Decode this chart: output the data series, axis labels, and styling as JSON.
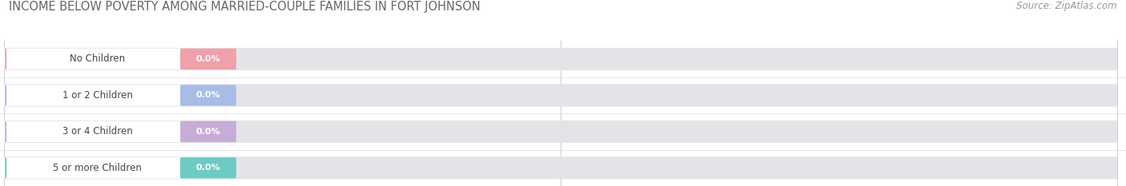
{
  "title": "INCOME BELOW POVERTY AMONG MARRIED-COUPLE FAMILIES IN FORT JOHNSON",
  "source": "Source: ZipAtlas.com",
  "categories": [
    "No Children",
    "1 or 2 Children",
    "3 or 4 Children",
    "5 or more Children"
  ],
  "values": [
    0.0,
    0.0,
    0.0,
    0.0
  ],
  "bar_colors": [
    "#f0a0a8",
    "#a8bce8",
    "#c8acd8",
    "#6cccc4"
  ],
  "background_color": "#ffffff",
  "bar_bg_color": "#e4e4e8",
  "title_fontsize": 10.5,
  "source_fontsize": 8.5,
  "title_color": "#666666",
  "source_color": "#999999"
}
